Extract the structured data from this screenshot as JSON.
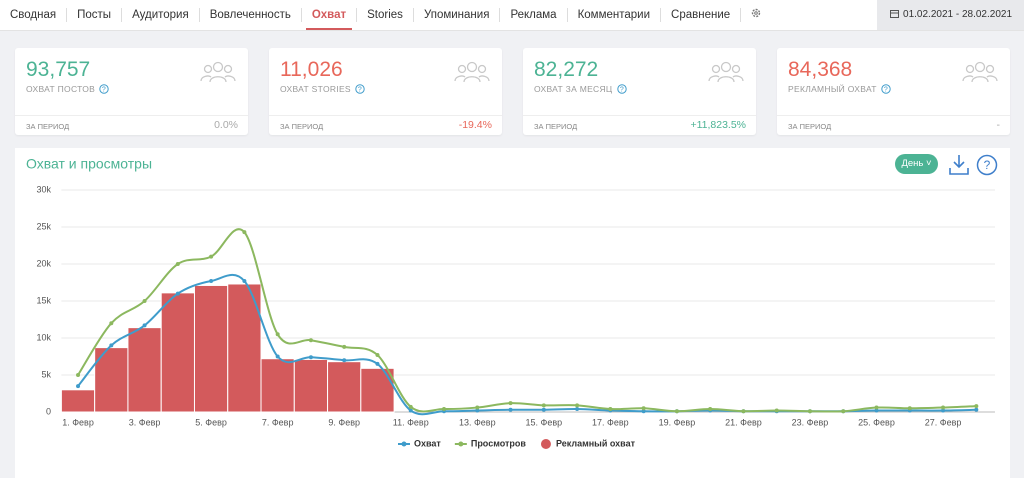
{
  "nav": {
    "tabs": [
      "Сводная",
      "Посты",
      "Аудитория",
      "Вовлеченность",
      "Охват",
      "Stories",
      "Упоминания",
      "Реклама",
      "Комментарии",
      "Сравнение"
    ],
    "active": 4,
    "date_range": "01.02.2021 - 28.02.2021"
  },
  "cards": [
    {
      "value": "93,757",
      "label": "ОХВАТ ПОСТОВ",
      "period": "ЗА ПЕРИОД",
      "change": "0.0%",
      "color": "#4cb394",
      "change_color": "#aaaaaa"
    },
    {
      "value": "11,026",
      "label": "ОХВАТ STORIES",
      "period": "ЗА ПЕРИОД",
      "change": "-19.4%",
      "color": "#e8675a",
      "change_color": "#e8675a"
    },
    {
      "value": "82,272",
      "label": "ОХВАТ ЗА МЕСЯЦ",
      "period": "ЗА ПЕРИОД",
      "change": "+11,823.5%",
      "color": "#4cb394",
      "change_color": "#4cb394"
    },
    {
      "value": "84,368",
      "label": "РЕКЛАМНЫЙ ОХВАТ",
      "period": "ЗА ПЕРИОД",
      "change": "-",
      "color": "#e8675a",
      "change_color": "#aaaaaa"
    }
  ],
  "interval_button": "День",
  "chart_data": {
    "type": "combo",
    "title": "Охват и просмотры",
    "categories": [
      "1. Февр",
      null,
      "3. Февр",
      null,
      "5. Февр",
      null,
      "7. Февр",
      null,
      "9. Февр",
      null,
      "11. Февр",
      null,
      "13. Февр",
      null,
      "15. Февр",
      null,
      "17. Февр",
      null,
      "19. Февр",
      null,
      "21. Февр",
      null,
      "23. Февр",
      null,
      "25. Февр",
      null,
      "27. Февр",
      null
    ],
    "series": [
      {
        "name": "Охват",
        "type": "line",
        "color": "#3f9ccb",
        "values": [
          3500,
          9000,
          11700,
          16000,
          17700,
          17700,
          7500,
          7400,
          7000,
          6500,
          200,
          100,
          200,
          300,
          300,
          400,
          200,
          100,
          100,
          200,
          100,
          100,
          100,
          100,
          200,
          200,
          200,
          300
        ]
      },
      {
        "name": "Просмотров",
        "type": "line",
        "color": "#8cb85f",
        "values": [
          5000,
          12000,
          15000,
          20000,
          21000,
          24300,
          10500,
          9700,
          8800,
          7700,
          700,
          400,
          600,
          1200,
          900,
          900,
          400,
          500,
          100,
          400,
          100,
          200,
          100,
          100,
          600,
          500,
          600,
          800
        ]
      },
      {
        "name": "Рекламный охват",
        "type": "bar",
        "color": "#d35a5c",
        "values": [
          3000,
          8700,
          11400,
          16100,
          17100,
          17300,
          7200,
          7100,
          6800,
          5900,
          0,
          0,
          0,
          0,
          0,
          0,
          0,
          0,
          0,
          0,
          0,
          0,
          0,
          0,
          0,
          0,
          0,
          0
        ]
      }
    ],
    "ylim": [
      0,
      30000
    ],
    "yticks": [
      0,
      {
        "value": 5000,
        "label": "5k"
      },
      {
        "value": 10000,
        "label": "10k"
      },
      {
        "value": 15000,
        "label": "15k"
      },
      {
        "value": 20000,
        "label": "20k"
      },
      {
        "value": 25000,
        "label": "25k"
      },
      {
        "value": 30000,
        "label": "30k"
      }
    ],
    "grid": true
  }
}
